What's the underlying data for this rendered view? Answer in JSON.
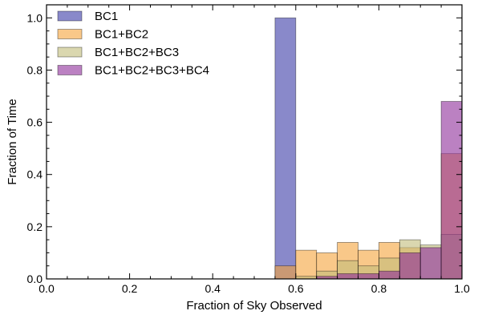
{
  "chart_data": {
    "type": "bar",
    "title": "",
    "xlabel": "Fraction of Sky Observed",
    "ylabel": "Fraction of Time",
    "xlim": [
      0.0,
      1.0
    ],
    "ylim": [
      0.0,
      1.05
    ],
    "xticks": [
      "0.0",
      "0.2",
      "0.4",
      "0.6",
      "0.8",
      "1.0"
    ],
    "yticks": [
      "0.0",
      "0.2",
      "0.4",
      "0.6",
      "0.8",
      "1.0"
    ],
    "bin_edges": [
      0.55,
      0.6,
      0.65,
      0.7,
      0.75,
      0.8,
      0.85,
      0.9,
      0.95,
      1.0
    ],
    "histtype": "overlapping-translucent",
    "grid": false,
    "legend_position": "top-left",
    "series": [
      {
        "name": "BC1",
        "color": "#3b3ba6",
        "values": [
          1.0,
          0,
          0,
          0,
          0,
          0,
          0,
          0,
          0
        ]
      },
      {
        "name": "BC1+BC2",
        "color": "#f5a33a",
        "values": [
          0.05,
          0.11,
          0.1,
          0.14,
          0.11,
          0.14,
          0.12,
          0.0,
          0.48
        ]
      },
      {
        "name": "BC1+BC2+BC3",
        "color": "#c2bc7a",
        "values": [
          0.0,
          0.01,
          0.03,
          0.07,
          0.05,
          0.08,
          0.15,
          0.13,
          0.17
        ]
      },
      {
        "name": "BC1+BC2+BC3+BC4",
        "color": "#8e2d99",
        "values": [
          0.0,
          0.0,
          0.01,
          0.02,
          0.02,
          0.03,
          0.1,
          0.12,
          0.68
        ]
      }
    ]
  }
}
